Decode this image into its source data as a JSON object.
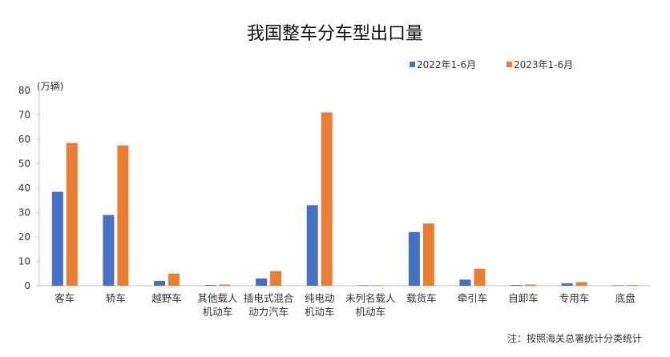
{
  "chart_data": {
    "type": "bar",
    "title": "我国整车分车型出口量",
    "unit_label": "(万辆)",
    "ylim": [
      0,
      80
    ],
    "yticks": [
      0,
      10,
      20,
      30,
      40,
      50,
      60,
      70,
      80
    ],
    "grid": false,
    "legend_position": "top-right",
    "categories": [
      [
        "客车"
      ],
      [
        "轿车"
      ],
      [
        "越野车"
      ],
      [
        "其他载人",
        "机动车"
      ],
      [
        "插电式混合",
        "动力汽车"
      ],
      [
        "纯电动",
        "机动车"
      ],
      [
        "未列名载人",
        "机动车"
      ],
      [
        "载货车"
      ],
      [
        "牵引车"
      ],
      [
        "自卸车"
      ],
      [
        "专用车"
      ],
      [
        "底盘"
      ]
    ],
    "series": [
      {
        "name": "2022年1-6月",
        "color": "#4472c4",
        "values": [
          38.5,
          29,
          2,
          0.3,
          3,
          33,
          0.2,
          22,
          2.5,
          0.3,
          1,
          0.2
        ]
      },
      {
        "name": "2023年1-6月",
        "color": "#ed7d31",
        "values": [
          58.5,
          57.5,
          5,
          0.5,
          6,
          71,
          0.2,
          25.5,
          7,
          0.5,
          1.5,
          0.3
        ]
      }
    ],
    "note": "注：按照海关总署统计分类统计"
  }
}
